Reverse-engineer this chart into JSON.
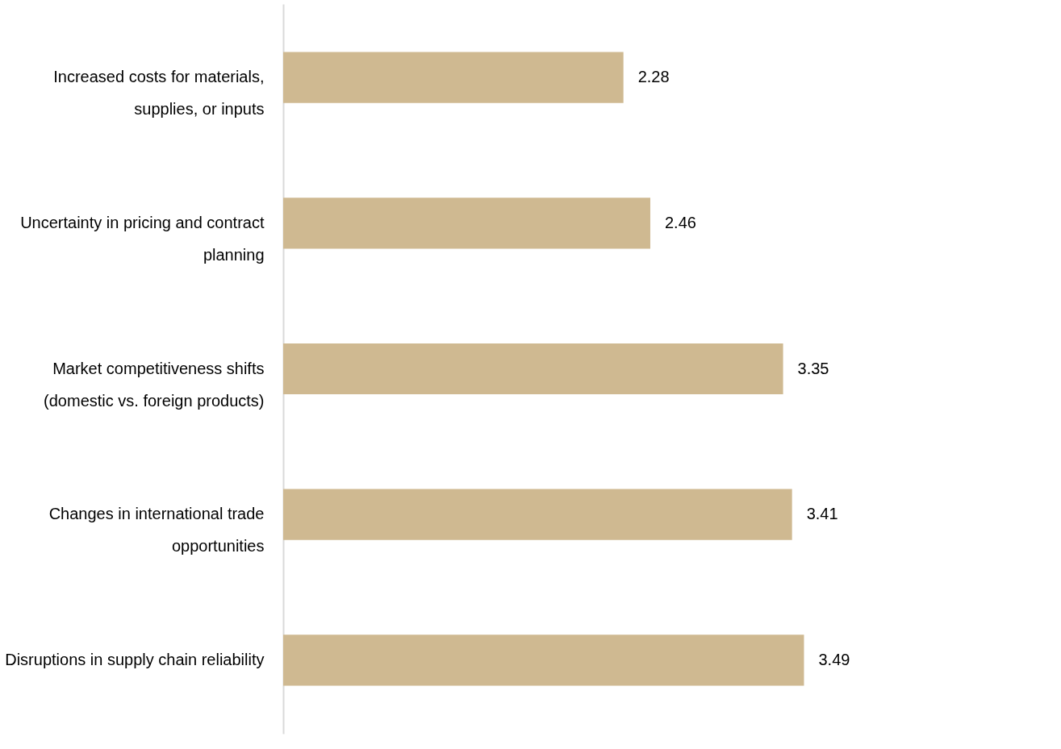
{
  "chart_data": {
    "type": "bar",
    "orientation": "horizontal",
    "data_labels": true,
    "categories": [
      "Increased costs for materials, supplies, or inputs",
      "Uncertainty in pricing and contract planning",
      "Market competitiveness shifts (domestic vs. foreign products)",
      "Changes in international trade opportunities",
      "Disruptions in supply chain reliability"
    ],
    "values": [
      2.28,
      2.46,
      3.35,
      3.41,
      3.49
    ],
    "color": "#cfb991"
  }
}
